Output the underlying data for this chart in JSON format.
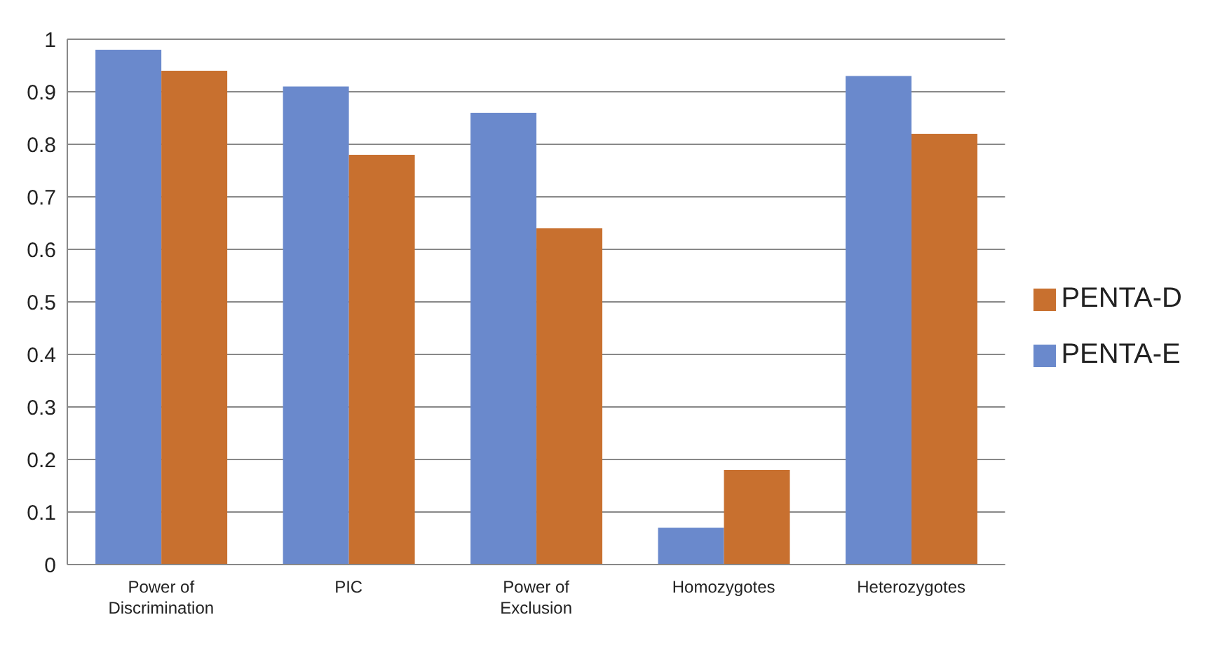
{
  "chart_data": {
    "type": "bar",
    "categories": [
      "Power of Discrimination",
      "PIC",
      "Power of Exclusion",
      "Homozygotes",
      "Heterozygotes"
    ],
    "series": [
      {
        "name": "PENTA-E",
        "color": "#6a89cc",
        "values": [
          0.98,
          0.91,
          0.86,
          0.07,
          0.93
        ]
      },
      {
        "name": "PENTA-D",
        "color": "#c8702f",
        "values": [
          0.94,
          0.78,
          0.64,
          0.18,
          0.82
        ]
      }
    ],
    "ylim": [
      0,
      1
    ],
    "yticks": [
      0,
      0.1,
      0.2,
      0.3,
      0.4,
      0.5,
      0.6,
      0.7,
      0.8,
      0.9,
      1
    ],
    "grid": "y",
    "legend": "right"
  }
}
